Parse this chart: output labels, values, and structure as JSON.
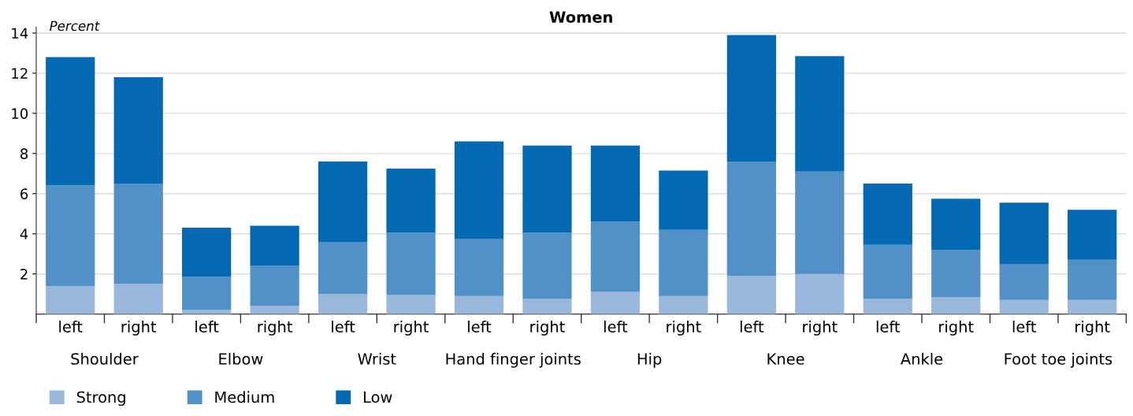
{
  "chart_data": {
    "type": "bar",
    "title": "Women",
    "ylabel": "Percent",
    "categories": [
      "left",
      "right",
      "left",
      "right",
      "left",
      "right",
      "left",
      "right",
      "left",
      "right",
      "left",
      "right",
      "left",
      "right",
      "left",
      "right"
    ],
    "annotations": [
      "Shoulder",
      "Elbow",
      "Wrist",
      "Hand finger joints",
      "Hip",
      "Knee",
      "Ankle",
      "Foot toe joints"
    ],
    "stacked": true,
    "ylim": [
      0,
      14.3
    ],
    "yticks": [
      2,
      4,
      6,
      8,
      10,
      12,
      14
    ],
    "grid": "y",
    "legend": "bottom left",
    "series": [
      {
        "name": "Strong",
        "color": "#9ab7dc",
        "values": [
          1.4,
          1.5,
          0.2,
          0.4,
          1.0,
          0.95,
          0.9,
          0.75,
          1.1,
          0.9,
          1.9,
          2.0,
          0.75,
          0.85,
          0.7,
          0.7
        ]
      },
      {
        "name": "Medium",
        "color": "#5291c7",
        "values": [
          5.0,
          5.0,
          1.65,
          2.0,
          2.6,
          3.1,
          2.85,
          3.3,
          3.5,
          3.3,
          5.7,
          5.1,
          2.7,
          2.35,
          1.8,
          2.0
        ]
      },
      {
        "name": "Low",
        "color": "#0369b2",
        "values": [
          6.4,
          5.3,
          2.45,
          2.0,
          4.0,
          3.2,
          4.85,
          4.35,
          3.8,
          2.95,
          6.3,
          5.75,
          3.05,
          2.55,
          3.05,
          2.5
        ]
      }
    ]
  }
}
